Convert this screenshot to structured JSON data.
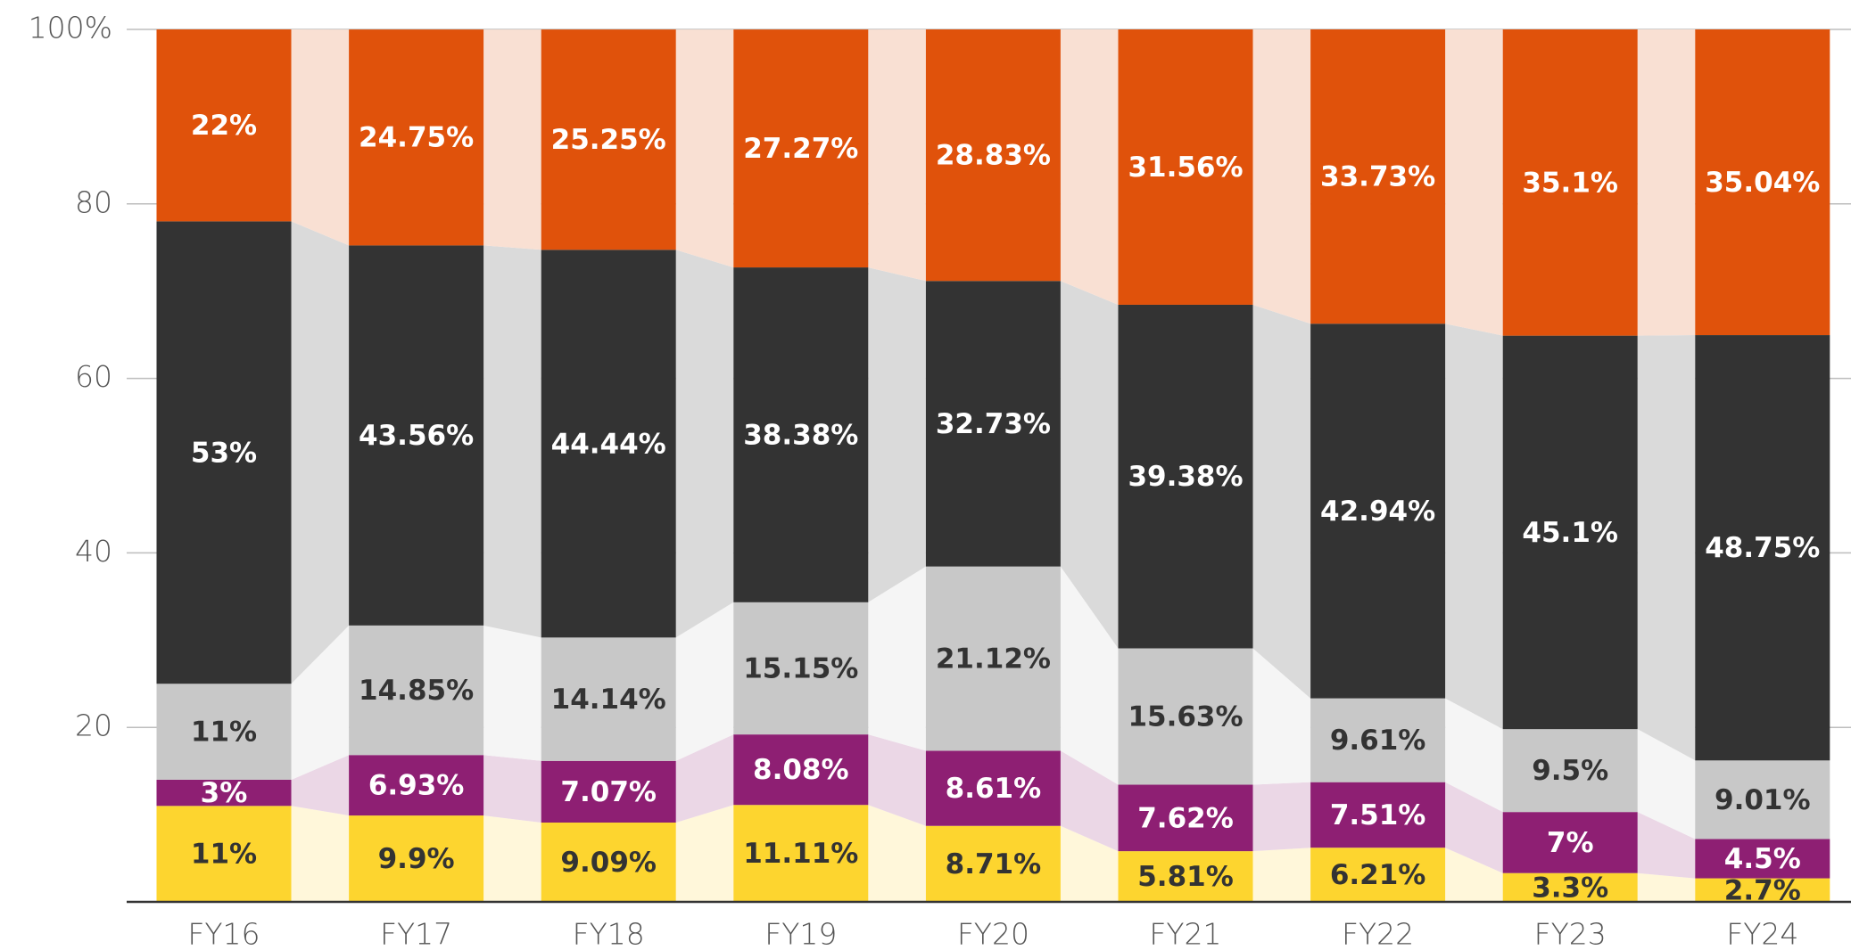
{
  "chart_data": {
    "type": "stacked_bar",
    "categories": [
      "FY16",
      "FY17",
      "FY18",
      "FY19",
      "FY20",
      "FY21",
      "FY22",
      "FY23",
      "FY24"
    ],
    "series": [
      {
        "color": "#fdd52f",
        "values": [
          11,
          9.9,
          9.09,
          11.11,
          8.71,
          5.81,
          6.21,
          3.3,
          2.7
        ],
        "value_labels": [
          "11%",
          "9.9%",
          "9.09%",
          "11.11%",
          "8.71%",
          "5.81%",
          "6.21%",
          "3.3%",
          "2.7%"
        ]
      },
      {
        "color": "#8e1f73",
        "values": [
          3,
          6.93,
          7.07,
          8.08,
          8.61,
          7.62,
          7.51,
          7,
          4.5
        ],
        "value_labels": [
          "3%",
          "6.93%",
          "7.07%",
          "8.08%",
          "8.61%",
          "7.62%",
          "7.51%",
          "7%",
          "4.5%"
        ]
      },
      {
        "color": "#c8c8c8",
        "values": [
          11,
          14.85,
          14.14,
          15.15,
          21.12,
          15.63,
          9.61,
          9.5,
          9.01
        ],
        "value_labels": [
          "11%",
          "14.85%",
          "14.14%",
          "15.15%",
          "21.12%",
          "15.63%",
          "9.61%",
          "9.5%",
          "9.01%"
        ]
      },
      {
        "color": "#333333",
        "values": [
          53,
          43.56,
          44.44,
          38.38,
          32.73,
          39.38,
          42.94,
          45.1,
          48.75
        ],
        "value_labels": [
          "53%",
          "43.56%",
          "44.44%",
          "38.38%",
          "32.73%",
          "39.38%",
          "42.94%",
          "45.1%",
          "48.75%"
        ]
      },
      {
        "color": "#e0520b",
        "values": [
          22,
          24.75,
          25.25,
          27.27,
          28.83,
          31.56,
          33.73,
          35.1,
          35.04
        ],
        "value_labels": [
          "22%",
          "24.75%",
          "25.25%",
          "27.27%",
          "28.83%",
          "31.56%",
          "33.73%",
          "35.1%",
          "35.04%"
        ]
      }
    ],
    "ylim": [
      0,
      100
    ],
    "yticks": [
      20,
      40,
      60,
      80,
      {
        "value": 100,
        "label": "100%"
      }
    ],
    "grid": true
  }
}
